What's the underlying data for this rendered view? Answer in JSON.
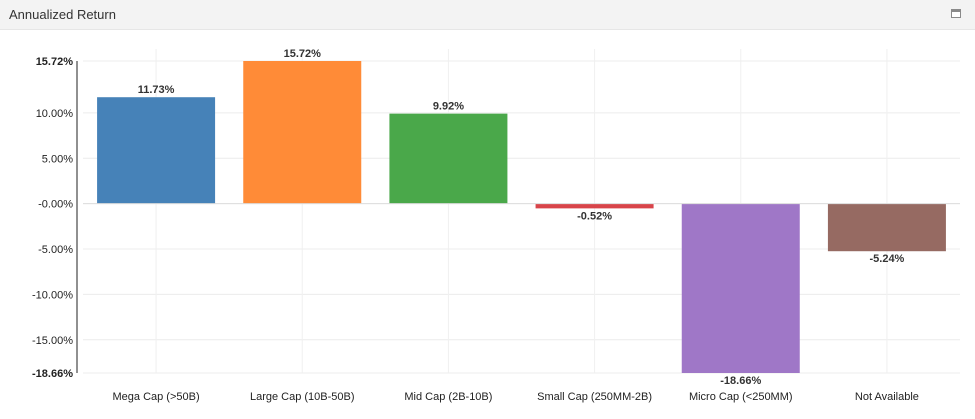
{
  "panel": {
    "title": "Annualized Return",
    "maximize_icon": "window-maximize-icon"
  },
  "chart_data": {
    "type": "bar",
    "title": "Annualized Return",
    "categories": [
      "Mega Cap (>50B)",
      "Large Cap (10B-50B)",
      "Mid Cap (2B-10B)",
      "Small Cap (250MM-2B)",
      "Micro Cap (<250MM)",
      "Not Available"
    ],
    "values": [
      11.73,
      15.72,
      9.92,
      -0.52,
      -18.66,
      -5.24
    ],
    "value_labels": [
      "11.73%",
      "15.72%",
      "9.92%",
      "-0.52%",
      "-18.66%",
      "-5.24%"
    ],
    "colors": [
      "#4682b8",
      "#ff8b37",
      "#4aa84a",
      "#d8444a",
      "#9f77c7",
      "#966a62"
    ],
    "ylim": [
      -18.66,
      15.72
    ],
    "y_ticks": [
      15.72,
      10,
      5,
      0,
      -5,
      -10,
      -15,
      -18.66
    ],
    "y_tick_labels": [
      "15.72%",
      "10.00%",
      "5.00%",
      "-0.00%",
      "-5.00%",
      "-10.00%",
      "-15.00%",
      "-18.66%"
    ],
    "bold_tick_labels": [
      "15.72%",
      "-18.66%"
    ],
    "xlabel": "",
    "ylabel": "",
    "grid": true
  }
}
